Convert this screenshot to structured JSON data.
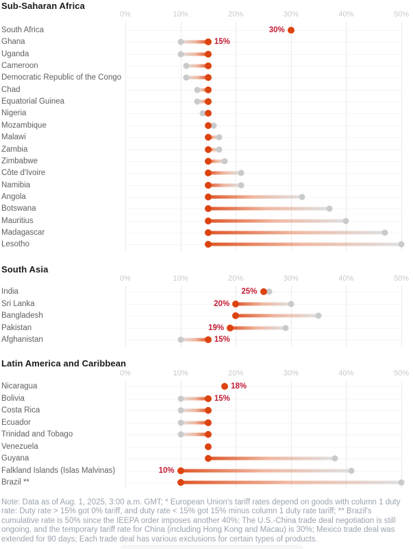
{
  "page": {
    "note": "Note: Data as of Aug. 1, 2025, 3:00 a.m. GMT; * European Union's tariff rates depend on goods with column 1 duty rate: Duty rate > 15% got 0% tariff, and duty rate < 15% got 15% minus column 1 duty rate tariff; ** Brazil's cumulative rate is 50% since the IEEPA order imposes another 40%; The U.S.-China trade deal negotiation is still ongoing, and the temporary tariff rate for China (including Hong Kong and Macau) is 30%; Mexico trade deal was extended for 90 days; Each trade deal has various exclusions for certain types of products."
  },
  "chart_data": {
    "type": "dumbbell",
    "unit": "percent tariff rate",
    "x_axis": {
      "tick_labels": [
        "0%",
        "10%",
        "20%",
        "30%",
        "40%",
        "50%"
      ],
      "tick_values": [
        0,
        10,
        20,
        30,
        40,
        50
      ],
      "xlim": [
        0,
        52
      ],
      "grid": true
    },
    "colors": {
      "new_rate_dot": "#dc440f",
      "old_rate_dot": "#c9cacb",
      "value_label": "#c31b34",
      "section_title": "#18191b",
      "country_label": "#5d5f63",
      "axis_tick": "#c6c9cc"
    },
    "sections": [
      {
        "title": "Sub-Saharan Africa",
        "rows": [
          {
            "country": "South Africa",
            "new": 30,
            "old": null,
            "value_label": "30%",
            "label_side": "left"
          },
          {
            "country": "Ghana",
            "new": 15,
            "old": 10,
            "value_label": "15%",
            "label_side": "right"
          },
          {
            "country": "Uganda",
            "new": 15,
            "old": 10
          },
          {
            "country": "Cameroon",
            "new": 15,
            "old": 11
          },
          {
            "country": "Democratic Republic of the Congo",
            "new": 15,
            "old": 11
          },
          {
            "country": "Chad",
            "new": 15,
            "old": 13
          },
          {
            "country": "Equatorial Guinea",
            "new": 15,
            "old": 13
          },
          {
            "country": "Nigeria",
            "new": 15,
            "old": 14
          },
          {
            "country": "Mozambique",
            "new": 15,
            "old": 16
          },
          {
            "country": "Malawi",
            "new": 15,
            "old": 17
          },
          {
            "country": "Zambia",
            "new": 15,
            "old": 17
          },
          {
            "country": "Zimbabwe",
            "new": 15,
            "old": 18
          },
          {
            "country": "Côte d'Ivoire",
            "new": 15,
            "old": 21
          },
          {
            "country": "Namibia",
            "new": 15,
            "old": 21
          },
          {
            "country": "Angola",
            "new": 15,
            "old": 32
          },
          {
            "country": "Botswana",
            "new": 15,
            "old": 37
          },
          {
            "country": "Mauritius",
            "new": 15,
            "old": 40
          },
          {
            "country": "Madagascar",
            "new": 15,
            "old": 47
          },
          {
            "country": "Lesotho",
            "new": 15,
            "old": 50
          }
        ]
      },
      {
        "title": "South Asia",
        "rows": [
          {
            "country": "India",
            "new": 25,
            "old": 26,
            "value_label": "25%",
            "label_side": "left"
          },
          {
            "country": "Sri Lanka",
            "new": 20,
            "old": 30,
            "value_label": "20%",
            "label_side": "left"
          },
          {
            "country": "Bangladesh",
            "new": 20,
            "old": 35
          },
          {
            "country": "Pakistan",
            "new": 19,
            "old": 29,
            "value_label": "19%",
            "label_side": "left"
          },
          {
            "country": "Afghanistan",
            "new": 15,
            "old": 10,
            "value_label": "15%",
            "label_side": "right"
          }
        ]
      },
      {
        "title": "Latin America and Caribbean",
        "rows": [
          {
            "country": "Nicaragua",
            "new": 18,
            "old": null,
            "value_label": "18%",
            "label_side": "right"
          },
          {
            "country": "Bolivia",
            "new": 15,
            "old": 10,
            "value_label": "15%",
            "label_side": "right"
          },
          {
            "country": "Costa Rica",
            "new": 15,
            "old": 10
          },
          {
            "country": "Ecuador",
            "new": 15,
            "old": 10
          },
          {
            "country": "Trinidad and Tobago",
            "new": 15,
            "old": 10
          },
          {
            "country": "Venezuela",
            "new": 15,
            "old": null
          },
          {
            "country": "Guyana",
            "new": 15,
            "old": 38
          },
          {
            "country": "Falkland Islands (Islas Malvinas)",
            "new": 10,
            "old": 41,
            "value_label": "10%",
            "label_side": "left"
          },
          {
            "country": "Brazil **",
            "new": 10,
            "old": 50
          }
        ]
      }
    ]
  }
}
